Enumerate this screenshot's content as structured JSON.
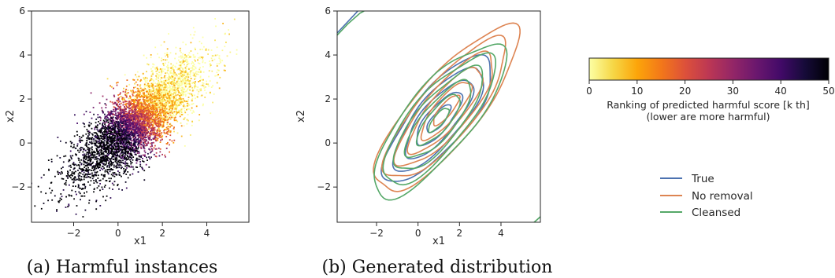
{
  "chart_data": [
    {
      "type": "scatter",
      "caption": "(a) Harmful instances",
      "xlabel": "x1",
      "ylabel": "x2",
      "xlim": [
        -3.9,
        5.9
      ],
      "ylim": [
        -3.6,
        6.0
      ],
      "xticks": [
        -2,
        0,
        2,
        4
      ],
      "yticks": [
        -2,
        0,
        2,
        4,
        6
      ],
      "point_cloud": {
        "description_free": true,
        "center": [
          0.9,
          1.0
        ],
        "std": [
          1.4,
          1.35
        ],
        "correlation": 0.78,
        "count": 5200,
        "color_by": "predicted harmful ranking [k th]"
      }
    },
    {
      "type": "contour",
      "caption": "(b) Generated distribution",
      "xlabel": "x1",
      "ylabel": "x2",
      "xlim": [
        -3.9,
        5.9
      ],
      "ylim": [
        -3.6,
        6.0
      ],
      "xticks": [
        -2,
        0,
        2,
        4
      ],
      "yticks": [
        -2,
        0,
        2,
        4,
        6
      ],
      "series": [
        {
          "name": "True",
          "color": "#4c72b0",
          "center": [
            1.0,
            1.1
          ],
          "sx": 1.05,
          "sy": 1.15,
          "rho": 0.78,
          "levels": [
            0.55,
            1.05,
            1.55,
            2.05,
            2.5
          ]
        },
        {
          "name": "No removal",
          "color": "#dd8452",
          "center": [
            1.35,
            1.5
          ],
          "sx": 1.15,
          "sy": 1.25,
          "rho": 0.82,
          "levels": [
            0.55,
            1.05,
            1.55,
            2.05,
            2.55,
            3.0
          ]
        },
        {
          "name": "Cleansed",
          "color": "#55a868",
          "center": [
            1.0,
            1.05
          ],
          "sx": 1.1,
          "sy": 1.2,
          "rho": 0.79,
          "levels": [
            0.45,
            0.95,
            1.45,
            1.95,
            2.45,
            2.9
          ]
        }
      ]
    }
  ],
  "colorbar": {
    "label_line1": "Ranking of predicted harmful score [k th]",
    "label_line2": "(lower are more harmful)",
    "ticks": [
      0,
      10,
      20,
      30,
      40,
      50
    ],
    "range": [
      0,
      50
    ],
    "colormap": "inferno_r"
  },
  "legend": {
    "items": [
      {
        "label": "True",
        "color": "#4c72b0"
      },
      {
        "label": "No removal",
        "color": "#dd8452"
      },
      {
        "label": "Cleansed",
        "color": "#55a868"
      }
    ]
  }
}
